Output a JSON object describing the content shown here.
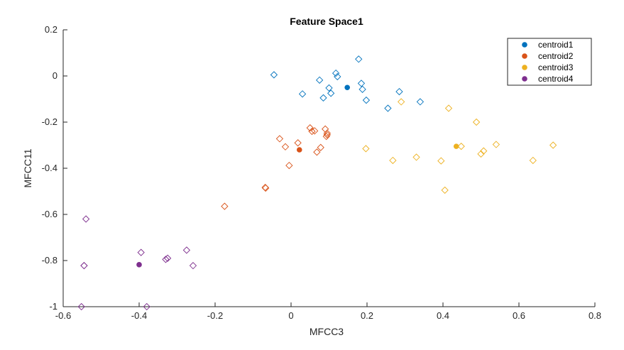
{
  "chart_data": {
    "type": "scatter",
    "title": "Feature Space1",
    "xlabel": "MFCC3",
    "ylabel": "MFCC11",
    "xlim": [
      -0.6,
      0.8
    ],
    "ylim": [
      -1,
      0.2
    ],
    "xticks": [
      -0.6,
      -0.4,
      -0.2,
      0,
      0.2,
      0.4,
      0.6,
      0.8
    ],
    "yticks": [
      -1,
      -0.8,
      -0.6,
      -0.4,
      -0.2,
      0,
      0.2
    ],
    "xtick_labels": [
      "-0.6",
      "-0.4",
      "-0.2",
      "0",
      "0.2",
      "0.4",
      "0.6",
      "0.8"
    ],
    "ytick_labels": [
      "-1",
      "-0.8",
      "-0.6",
      "-0.4",
      "-0.2",
      "0",
      "0.2"
    ],
    "grid": false,
    "legend_position": "top-right",
    "series": [
      {
        "name": "centroid1",
        "color": "#0072BD",
        "centroid": [
          0.148,
          -0.05
        ],
        "points": [
          [
            -0.045,
            0.005
          ],
          [
            0.03,
            -0.078
          ],
          [
            0.075,
            -0.018
          ],
          [
            0.085,
            -0.095
          ],
          [
            0.1,
            -0.052
          ],
          [
            0.105,
            -0.075
          ],
          [
            0.118,
            0.012
          ],
          [
            0.122,
            -0.003
          ],
          [
            0.178,
            0.073
          ],
          [
            0.185,
            -0.032
          ],
          [
            0.188,
            -0.058
          ],
          [
            0.198,
            -0.105
          ],
          [
            0.255,
            -0.14
          ],
          [
            0.285,
            -0.068
          ],
          [
            0.34,
            -0.112
          ]
        ]
      },
      {
        "name": "centroid2",
        "color": "#D95319",
        "centroid": [
          0.022,
          -0.32
        ],
        "points": [
          [
            -0.175,
            -0.565
          ],
          [
            -0.068,
            -0.483
          ],
          [
            -0.067,
            -0.486
          ],
          [
            -0.03,
            -0.272
          ],
          [
            -0.015,
            -0.307
          ],
          [
            -0.005,
            -0.388
          ],
          [
            0.018,
            -0.29
          ],
          [
            0.05,
            -0.225
          ],
          [
            0.055,
            -0.24
          ],
          [
            0.062,
            -0.238
          ],
          [
            0.068,
            -0.33
          ],
          [
            0.078,
            -0.31
          ],
          [
            0.09,
            -0.23
          ],
          [
            0.093,
            -0.262
          ],
          [
            0.095,
            -0.255
          ],
          [
            0.095,
            -0.248
          ]
        ]
      },
      {
        "name": "centroid3",
        "color": "#EDB120",
        "centroid": [
          0.435,
          -0.305
        ],
        "points": [
          [
            0.197,
            -0.315
          ],
          [
            0.268,
            -0.366
          ],
          [
            0.29,
            -0.112
          ],
          [
            0.33,
            -0.352
          ],
          [
            0.395,
            -0.368
          ],
          [
            0.405,
            -0.495
          ],
          [
            0.415,
            -0.14
          ],
          [
            0.448,
            -0.305
          ],
          [
            0.488,
            -0.2
          ],
          [
            0.5,
            -0.338
          ],
          [
            0.507,
            -0.325
          ],
          [
            0.54,
            -0.297
          ],
          [
            0.637,
            -0.366
          ],
          [
            0.69,
            -0.3
          ]
        ]
      },
      {
        "name": "centroid4",
        "color": "#7E2F8E",
        "centroid": [
          -0.4,
          -0.818
        ],
        "points": [
          [
            -0.54,
            -0.62
          ],
          [
            -0.545,
            -0.822
          ],
          [
            -0.545,
            -0.822
          ],
          [
            -0.552,
            -1.0
          ],
          [
            -0.395,
            -0.765
          ],
          [
            -0.38,
            -1.0
          ],
          [
            -0.33,
            -0.795
          ],
          [
            -0.325,
            -0.79
          ],
          [
            -0.275,
            -0.755
          ],
          [
            -0.258,
            -0.822
          ]
        ]
      }
    ]
  }
}
